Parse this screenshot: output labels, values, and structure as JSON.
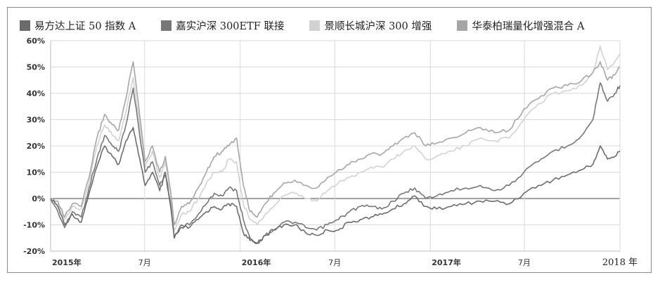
{
  "chart_data": {
    "type": "line",
    "title": "",
    "xlabel": "",
    "ylabel": "",
    "ylim": [
      -20,
      60
    ],
    "yticks": [
      "60%",
      "50%",
      "40%",
      "30%",
      "20%",
      "10%",
      "0%",
      "-10%",
      "-20%"
    ],
    "ytick_values": [
      60,
      50,
      40,
      30,
      20,
      10,
      0,
      -10,
      -20
    ],
    "xlim": [
      "2015-01-01",
      "2018-01-01"
    ],
    "xticks": [
      {
        "label": "2015年",
        "date": "2015-01-01",
        "bold": true
      },
      {
        "label": "7月",
        "date": "2015-07-01",
        "bold": false
      },
      {
        "label": "2016年",
        "date": "2016-01-01",
        "bold": true
      },
      {
        "label": "7月",
        "date": "2016-07-01",
        "bold": false
      },
      {
        "label": "2017年",
        "date": "2017-01-01",
        "bold": true
      },
      {
        "label": "7月",
        "date": "2017-07-01",
        "bold": false
      },
      {
        "label": "2018 年",
        "date": "2018-01-01",
        "bold": false,
        "serif": true
      }
    ],
    "grid": true,
    "legend_position": "top",
    "series": [
      {
        "name": "易方达上证 50 指数 A",
        "color": "#6b6b6b",
        "points": [
          [
            "2015-01-01",
            0
          ],
          [
            "2015-01-15",
            -3
          ],
          [
            "2015-01-28",
            -10
          ],
          [
            "2015-02-12",
            -6
          ],
          [
            "2015-03-01",
            -9
          ],
          [
            "2015-03-16",
            2
          ],
          [
            "2015-03-31",
            12
          ],
          [
            "2015-04-15",
            20
          ],
          [
            "2015-04-30",
            16
          ],
          [
            "2015-05-12",
            13
          ],
          [
            "2015-05-26",
            22
          ],
          [
            "2015-06-09",
            27
          ],
          [
            "2015-06-19",
            17
          ],
          [
            "2015-07-02",
            5
          ],
          [
            "2015-07-16",
            10
          ],
          [
            "2015-07-30",
            3
          ],
          [
            "2015-08-10",
            9
          ],
          [
            "2015-08-20",
            -3
          ],
          [
            "2015-08-27",
            -15
          ],
          [
            "2015-09-10",
            -11
          ],
          [
            "2015-09-25",
            -11
          ],
          [
            "2015-10-12",
            -8
          ],
          [
            "2015-10-28",
            -5
          ],
          [
            "2015-11-12",
            -3
          ],
          [
            "2015-11-27",
            -4
          ],
          [
            "2015-12-10",
            -2
          ],
          [
            "2015-12-25",
            -3
          ],
          [
            "2016-01-07",
            -13
          ],
          [
            "2016-01-20",
            -16
          ],
          [
            "2016-02-03",
            -17
          ],
          [
            "2016-02-18",
            -14
          ],
          [
            "2016-03-05",
            -12
          ],
          [
            "2016-03-25",
            -10
          ],
          [
            "2016-04-15",
            -10
          ],
          [
            "2016-05-06",
            -13
          ],
          [
            "2016-05-27",
            -14
          ],
          [
            "2016-06-17",
            -12
          ],
          [
            "2016-07-08",
            -12
          ],
          [
            "2016-07-29",
            -9
          ],
          [
            "2016-08-19",
            -8
          ],
          [
            "2016-09-09",
            -7
          ],
          [
            "2016-09-30",
            -6
          ],
          [
            "2016-10-21",
            -4
          ],
          [
            "2016-11-11",
            -2
          ],
          [
            "2016-12-02",
            1
          ],
          [
            "2016-12-23",
            -3
          ],
          [
            "2017-01-13",
            -4
          ],
          [
            "2017-02-10",
            -3
          ],
          [
            "2017-03-10",
            -2
          ],
          [
            "2017-04-07",
            -1
          ],
          [
            "2017-05-05",
            -1
          ],
          [
            "2017-06-02",
            -2
          ],
          [
            "2017-06-30",
            2
          ],
          [
            "2017-07-28",
            5
          ],
          [
            "2017-08-25",
            7
          ],
          [
            "2017-09-22",
            9
          ],
          [
            "2017-10-20",
            11
          ],
          [
            "2017-11-10",
            13
          ],
          [
            "2017-11-24",
            20
          ],
          [
            "2017-12-08",
            15
          ],
          [
            "2017-12-22",
            16
          ],
          [
            "2018-01-01",
            18
          ]
        ]
      },
      {
        "name": "嘉实沪深 300ETF 联接",
        "color": "#777777",
        "points": [
          [
            "2015-01-01",
            0
          ],
          [
            "2015-01-15",
            -5
          ],
          [
            "2015-01-28",
            -11
          ],
          [
            "2015-02-12",
            -5
          ],
          [
            "2015-03-01",
            -7
          ],
          [
            "2015-03-16",
            4
          ],
          [
            "2015-03-31",
            15
          ],
          [
            "2015-04-15",
            24
          ],
          [
            "2015-04-30",
            20
          ],
          [
            "2015-05-12",
            18
          ],
          [
            "2015-05-26",
            28
          ],
          [
            "2015-06-09",
            42
          ],
          [
            "2015-06-19",
            28
          ],
          [
            "2015-07-02",
            10
          ],
          [
            "2015-07-16",
            14
          ],
          [
            "2015-07-30",
            5
          ],
          [
            "2015-08-10",
            10
          ],
          [
            "2015-08-20",
            -2
          ],
          [
            "2015-08-27",
            -15
          ],
          [
            "2015-09-10",
            -10
          ],
          [
            "2015-09-25",
            -10
          ],
          [
            "2015-10-12",
            -6
          ],
          [
            "2015-10-28",
            -2
          ],
          [
            "2015-11-12",
            2
          ],
          [
            "2015-11-27",
            1
          ],
          [
            "2015-12-10",
            4
          ],
          [
            "2015-12-25",
            3
          ],
          [
            "2016-01-07",
            -8
          ],
          [
            "2016-01-20",
            -15
          ],
          [
            "2016-02-03",
            -17
          ],
          [
            "2016-02-18",
            -14
          ],
          [
            "2016-03-05",
            -12
          ],
          [
            "2016-03-25",
            -9
          ],
          [
            "2016-04-15",
            -9
          ],
          [
            "2016-05-06",
            -11
          ],
          [
            "2016-05-27",
            -12
          ],
          [
            "2016-06-17",
            -10
          ],
          [
            "2016-07-08",
            -8
          ],
          [
            "2016-07-29",
            -5
          ],
          [
            "2016-08-19",
            -3
          ],
          [
            "2016-09-09",
            -3
          ],
          [
            "2016-09-30",
            -4
          ],
          [
            "2016-10-21",
            -1
          ],
          [
            "2016-11-11",
            2
          ],
          [
            "2016-12-02",
            4
          ],
          [
            "2016-12-23",
            0
          ],
          [
            "2017-01-13",
            1
          ],
          [
            "2017-02-10",
            3
          ],
          [
            "2017-03-10",
            4
          ],
          [
            "2017-04-07",
            5
          ],
          [
            "2017-05-05",
            3
          ],
          [
            "2017-06-02",
            5
          ],
          [
            "2017-06-30",
            10
          ],
          [
            "2017-07-28",
            14
          ],
          [
            "2017-08-25",
            18
          ],
          [
            "2017-09-22",
            20
          ],
          [
            "2017-10-20",
            24
          ],
          [
            "2017-11-10",
            30
          ],
          [
            "2017-11-24",
            44
          ],
          [
            "2017-12-08",
            37
          ],
          [
            "2017-12-22",
            40
          ],
          [
            "2018-01-01",
            43
          ]
        ]
      },
      {
        "name": "景顺长城沪深 300 增强",
        "color": "#d2d2d2",
        "points": [
          [
            "2015-01-01",
            0
          ],
          [
            "2015-01-15",
            -2
          ],
          [
            "2015-01-28",
            -8
          ],
          [
            "2015-02-12",
            -3
          ],
          [
            "2015-03-01",
            -4
          ],
          [
            "2015-03-16",
            6
          ],
          [
            "2015-03-31",
            20
          ],
          [
            "2015-04-15",
            28
          ],
          [
            "2015-04-30",
            24
          ],
          [
            "2015-05-12",
            22
          ],
          [
            "2015-05-26",
            33
          ],
          [
            "2015-06-09",
            46
          ],
          [
            "2015-06-19",
            32
          ],
          [
            "2015-07-02",
            12
          ],
          [
            "2015-07-16",
            18
          ],
          [
            "2015-07-30",
            8
          ],
          [
            "2015-08-10",
            14
          ],
          [
            "2015-08-20",
            2
          ],
          [
            "2015-08-27",
            -12
          ],
          [
            "2015-09-10",
            -6
          ],
          [
            "2015-09-25",
            -5
          ],
          [
            "2015-10-12",
            0
          ],
          [
            "2015-10-28",
            6
          ],
          [
            "2015-11-12",
            10
          ],
          [
            "2015-11-27",
            10
          ],
          [
            "2015-12-10",
            15
          ],
          [
            "2015-12-25",
            14
          ],
          [
            "2016-01-07",
            -2
          ],
          [
            "2016-01-20",
            -8
          ],
          [
            "2016-02-03",
            -10
          ],
          [
            "2016-02-18",
            -6
          ],
          [
            "2016-03-05",
            -3
          ],
          [
            "2016-03-25",
            1
          ],
          [
            "2016-04-15",
            2
          ],
          [
            "2016-05-06",
            0
          ],
          [
            "2016-05-27",
            -1
          ],
          [
            "2016-06-17",
            3
          ],
          [
            "2016-07-08",
            6
          ],
          [
            "2016-07-29",
            8
          ],
          [
            "2016-08-19",
            10
          ],
          [
            "2016-09-09",
            12
          ],
          [
            "2016-09-30",
            12
          ],
          [
            "2016-10-21",
            15
          ],
          [
            "2016-11-11",
            18
          ],
          [
            "2016-12-02",
            20
          ],
          [
            "2016-12-23",
            15
          ],
          [
            "2017-01-13",
            16
          ],
          [
            "2017-02-10",
            18
          ],
          [
            "2017-03-10",
            20
          ],
          [
            "2017-04-07",
            23
          ],
          [
            "2017-05-05",
            22
          ],
          [
            "2017-06-02",
            23
          ],
          [
            "2017-06-30",
            30
          ],
          [
            "2017-07-28",
            36
          ],
          [
            "2017-08-25",
            40
          ],
          [
            "2017-09-22",
            41
          ],
          [
            "2017-10-20",
            43
          ],
          [
            "2017-11-10",
            48
          ],
          [
            "2017-11-24",
            58
          ],
          [
            "2017-12-08",
            49
          ],
          [
            "2017-12-22",
            52
          ],
          [
            "2018-01-01",
            55
          ]
        ]
      },
      {
        "name": "华泰柏瑞量化增强混合 A",
        "color": "#a6a6a6",
        "points": [
          [
            "2015-01-01",
            0
          ],
          [
            "2015-01-15",
            -1
          ],
          [
            "2015-01-28",
            -7
          ],
          [
            "2015-02-12",
            -2
          ],
          [
            "2015-03-01",
            -3
          ],
          [
            "2015-03-16",
            8
          ],
          [
            "2015-03-31",
            23
          ],
          [
            "2015-04-15",
            32
          ],
          [
            "2015-04-30",
            28
          ],
          [
            "2015-05-12",
            26
          ],
          [
            "2015-05-26",
            38
          ],
          [
            "2015-06-09",
            52
          ],
          [
            "2015-06-19",
            36
          ],
          [
            "2015-07-02",
            14
          ],
          [
            "2015-07-16",
            20
          ],
          [
            "2015-07-30",
            10
          ],
          [
            "2015-08-10",
            16
          ],
          [
            "2015-08-20",
            3
          ],
          [
            "2015-08-27",
            -10
          ],
          [
            "2015-09-10",
            -3
          ],
          [
            "2015-09-25",
            -2
          ],
          [
            "2015-10-12",
            4
          ],
          [
            "2015-10-28",
            10
          ],
          [
            "2015-11-12",
            16
          ],
          [
            "2015-11-27",
            18
          ],
          [
            "2015-12-10",
            20
          ],
          [
            "2015-12-25",
            23
          ],
          [
            "2016-01-07",
            5
          ],
          [
            "2016-01-20",
            -5
          ],
          [
            "2016-02-03",
            -7
          ],
          [
            "2016-02-18",
            -2
          ],
          [
            "2016-03-05",
            2
          ],
          [
            "2016-03-25",
            6
          ],
          [
            "2016-04-15",
            7
          ],
          [
            "2016-05-06",
            5
          ],
          [
            "2016-05-27",
            4
          ],
          [
            "2016-06-17",
            8
          ],
          [
            "2016-07-08",
            11
          ],
          [
            "2016-07-29",
            13
          ],
          [
            "2016-08-19",
            15
          ],
          [
            "2016-09-09",
            17
          ],
          [
            "2016-09-30",
            17
          ],
          [
            "2016-10-21",
            20
          ],
          [
            "2016-11-11",
            23
          ],
          [
            "2016-12-02",
            25
          ],
          [
            "2016-12-23",
            20
          ],
          [
            "2017-01-13",
            21
          ],
          [
            "2017-02-10",
            23
          ],
          [
            "2017-03-10",
            25
          ],
          [
            "2017-04-07",
            27
          ],
          [
            "2017-05-05",
            25
          ],
          [
            "2017-06-02",
            26
          ],
          [
            "2017-06-30",
            34
          ],
          [
            "2017-07-28",
            38
          ],
          [
            "2017-08-25",
            42
          ],
          [
            "2017-09-22",
            43
          ],
          [
            "2017-10-20",
            45
          ],
          [
            "2017-11-10",
            48
          ],
          [
            "2017-11-24",
            52
          ],
          [
            "2017-12-08",
            45
          ],
          [
            "2017-12-22",
            47
          ],
          [
            "2018-01-01",
            50
          ]
        ]
      }
    ]
  }
}
